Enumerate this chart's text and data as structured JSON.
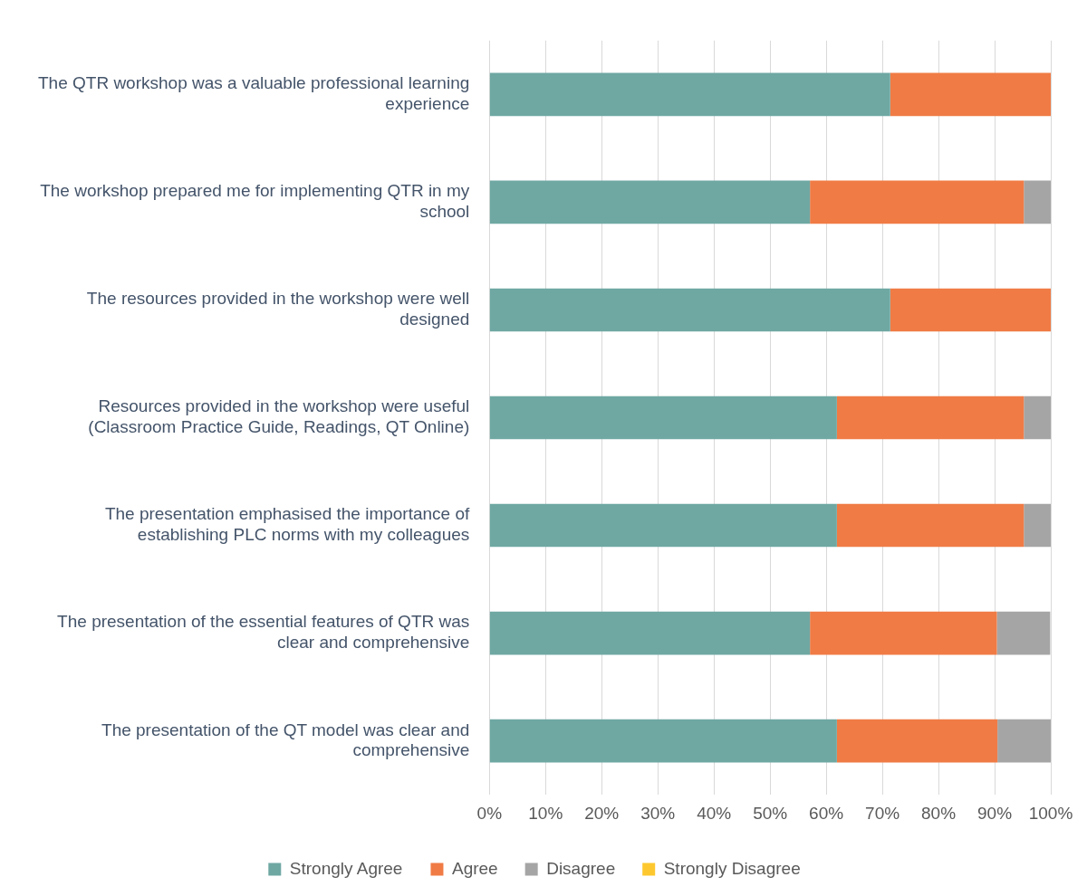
{
  "chart_data": {
    "type": "bar",
    "orientation": "horizontal",
    "stacked": true,
    "categories": [
      "The QTR workshop was a valuable professional learning experience",
      "The workshop prepared me for implementing QTR in my school",
      "The resources provided in the workshop were well designed",
      "Resources provided in the workshop were useful (Classroom Practice Guide, Readings, QT Online)",
      "The presentation emphasised the importance of establishing PLC norms with my colleagues",
      "The presentation of the essential features of QTR was clear and comprehensive",
      "The presentation of the QT model was clear and comprehensive"
    ],
    "series": [
      {
        "name": "Strongly Agree",
        "color": "#6fa8a3",
        "values": [
          71.4,
          57.1,
          71.4,
          61.9,
          61.9,
          57.1,
          61.9
        ]
      },
      {
        "name": "Agree",
        "color": "#f07b45",
        "values": [
          28.6,
          38.1,
          28.6,
          33.3,
          33.3,
          33.3,
          28.6
        ]
      },
      {
        "name": "Disagree",
        "color": "#a5a5a5",
        "values": [
          0,
          4.8,
          0,
          4.8,
          4.8,
          9.5,
          9.5
        ]
      },
      {
        "name": "Strongly Disagree",
        "color": "#fdc82f",
        "values": [
          0,
          0,
          0,
          0,
          0,
          0,
          0
        ]
      }
    ],
    "xlim": [
      0,
      100
    ],
    "xticks": [
      {
        "value": 0,
        "label": "0%"
      },
      {
        "value": 10,
        "label": "10%"
      },
      {
        "value": 20,
        "label": "20%"
      },
      {
        "value": 30,
        "label": "30%"
      },
      {
        "value": 40,
        "label": "40%"
      },
      {
        "value": 50,
        "label": "50%"
      },
      {
        "value": 60,
        "label": "60%"
      },
      {
        "value": 70,
        "label": "70%"
      },
      {
        "value": 80,
        "label": "80%"
      },
      {
        "value": 90,
        "label": "90%"
      },
      {
        "value": 100,
        "label": "100%"
      }
    ],
    "grid": "x",
    "legend": "bottom"
  }
}
